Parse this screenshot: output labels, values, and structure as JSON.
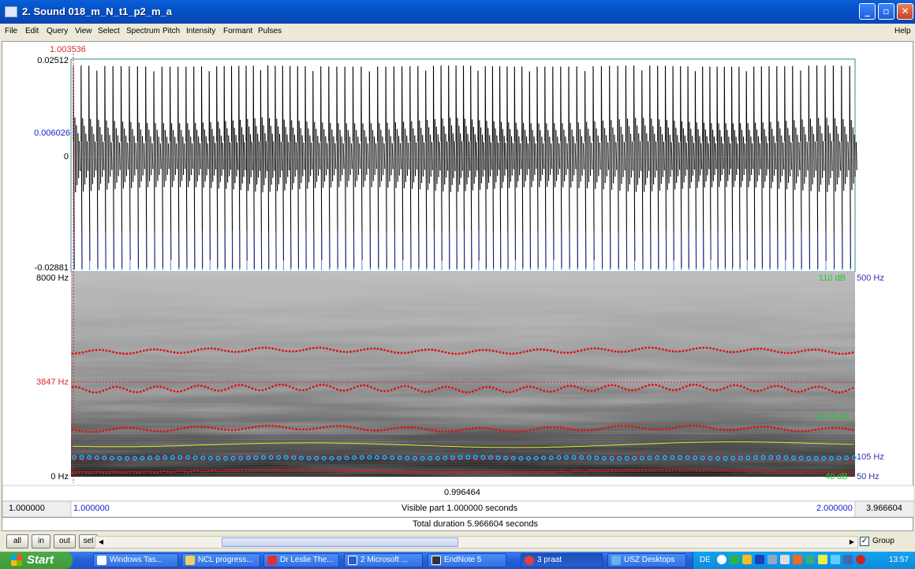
{
  "window": {
    "title": "2. Sound 018_m_N_t1_p2_m_a",
    "buttons": [
      "minimize",
      "maximize",
      "close"
    ]
  },
  "menu": {
    "items": [
      "File",
      "Edit",
      "Query",
      "View",
      "Select",
      "Spectrum",
      "Pitch",
      "Intensity",
      "Formant",
      "Pulses"
    ],
    "help": "Help"
  },
  "waveform": {
    "cursor_time": "1.003536",
    "y_top": "0.02512",
    "y_cursor": "0.006026",
    "y_zero": "0",
    "y_bottom": "-0.02881"
  },
  "spectrogram": {
    "freq_top": "8000 Hz",
    "freq_cursor": "3847 Hz",
    "freq_bottom": "0 Hz",
    "intensity_top": "110 dB",
    "intensity_value": "54.16 dB",
    "intensity_bottom": "40 dB",
    "pitch_top": "500 Hz",
    "pitch_value": "105 Hz",
    "pitch_bottom": "50 Hz"
  },
  "time_axis": {
    "cursor_readout": "0.996464",
    "left_outer": "1.000000",
    "left_visible": "1.000000",
    "visible_part": "Visible part 1.000000 seconds",
    "right_visible": "2.000000",
    "right_outer": "3.966604",
    "total_duration": "Total duration 5.966604 seconds"
  },
  "zoom_buttons": [
    "all",
    "in",
    "out",
    "sel"
  ],
  "group_label": "Group",
  "taskbar": {
    "start": "Start",
    "tasks": [
      "Windows Tas...",
      "NCL progress...",
      "Dr Leslie The...",
      "2 Microsoft ...",
      "EndNote 5",
      "3 praat",
      "USZ Desktops"
    ],
    "language": "DE",
    "clock": "13:57"
  },
  "colors": {
    "cursor_red": "#d92a2a",
    "axis_blue": "#1a1ad6",
    "intensity_green": "#22c933",
    "pitch_blue": "#3333aa",
    "formant_red": "#e01010",
    "pitch_cyan": "#18c8f0"
  }
}
